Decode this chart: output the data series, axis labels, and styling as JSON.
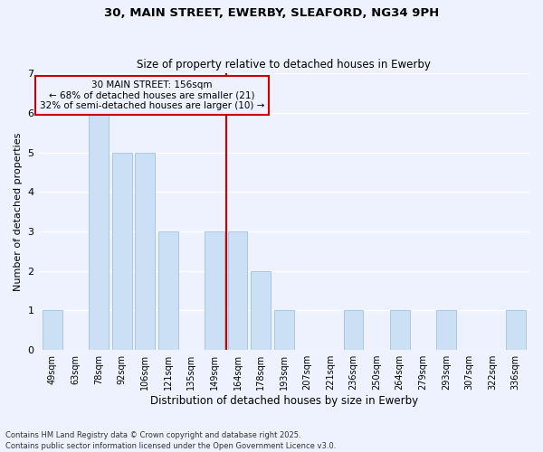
{
  "title1": "30, MAIN STREET, EWERBY, SLEAFORD, NG34 9PH",
  "title2": "Size of property relative to detached houses in Ewerby",
  "xlabel": "Distribution of detached houses by size in Ewerby",
  "ylabel": "Number of detached properties",
  "categories": [
    "49sqm",
    "63sqm",
    "78sqm",
    "92sqm",
    "106sqm",
    "121sqm",
    "135sqm",
    "149sqm",
    "164sqm",
    "178sqm",
    "193sqm",
    "207sqm",
    "221sqm",
    "236sqm",
    "250sqm",
    "264sqm",
    "279sqm",
    "293sqm",
    "307sqm",
    "322sqm",
    "336sqm"
  ],
  "values": [
    1,
    0,
    6,
    5,
    5,
    3,
    0,
    3,
    3,
    2,
    1,
    0,
    0,
    1,
    0,
    1,
    0,
    1,
    0,
    0,
    1
  ],
  "bar_color": "#cce0f5",
  "bar_edgecolor": "#a8c8e8",
  "ref_line_x": 7.5,
  "ref_line_label": "30 MAIN STREET: 156sqm",
  "annotation_line1": "← 68% of detached houses are smaller (21)",
  "annotation_line2": "32% of semi-detached houses are larger (10) →",
  "ref_line_color": "#cc0000",
  "box_edgecolor": "#cc0000",
  "ylim": [
    0,
    7
  ],
  "yticks": [
    0,
    1,
    2,
    3,
    4,
    5,
    6,
    7
  ],
  "bg_color": "#eef2ff",
  "grid_color": "#ffffff",
  "footer": "Contains HM Land Registry data © Crown copyright and database right 2025.\nContains public sector information licensed under the Open Government Licence v3.0."
}
